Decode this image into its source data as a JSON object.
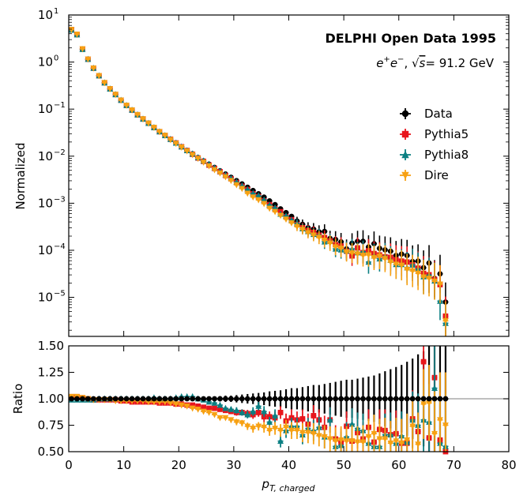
{
  "chart_data": [
    {
      "type": "scatter",
      "panel": "main",
      "yscale": "log",
      "title": "DELPHI Open Data 1995",
      "subtitle": "e+e−, √s = 91.2 GeV",
      "subtitle_parts": {
        "beam": "e",
        "sqrt_s": "= 91.2 GeV"
      },
      "xlabel": "",
      "ylabel": "Normalized",
      "xlim": [
        0,
        80
      ],
      "ylim_log10": [
        -5.83,
        1.0
      ],
      "yticks_labels": [
        "10",
        "10",
        "10",
        "10",
        "10",
        "10",
        "10"
      ],
      "yticks_exponents": [
        "1",
        "0",
        "−1",
        "−2",
        "−3",
        "−4",
        "−5"
      ],
      "yticks_log10": [
        1,
        0,
        -1,
        -2,
        -3,
        -4,
        -5
      ],
      "legend": {
        "location": "right",
        "entries": [
          "Data",
          "Pythia5",
          "Pythia8",
          "Dire"
        ]
      },
      "x": [
        0.5,
        1.5,
        2.5,
        3.5,
        4.5,
        5.5,
        6.5,
        7.5,
        8.5,
        9.5,
        10.5,
        11.5,
        12.5,
        13.5,
        14.5,
        15.5,
        16.5,
        17.5,
        18.5,
        19.5,
        20.5,
        21.5,
        22.5,
        23.5,
        24.5,
        25.5,
        26.5,
        27.5,
        28.5,
        29.5,
        30.5,
        31.5,
        32.5,
        33.5,
        34.5,
        35.5,
        36.5,
        37.5,
        38.5,
        39.5,
        40.5,
        41.5,
        42.5,
        43.5,
        44.5,
        45.5,
        46.5,
        47.5,
        48.5,
        49.5,
        50.5,
        51.5,
        52.5,
        53.5,
        54.5,
        55.5,
        56.5,
        57.5,
        58.5,
        59.5,
        60.5,
        61.5,
        62.5,
        63.5,
        64.5,
        65.5,
        66.5,
        67.5,
        68.5
      ],
      "series": [
        {
          "name": "Data",
          "color": "#000000",
          "marker": "circle",
          "log10_values": [
            0.68,
            0.58,
            0.27,
            0.06,
            -0.13,
            -0.29,
            -0.44,
            -0.57,
            -0.69,
            -0.81,
            -0.92,
            -1.02,
            -1.12,
            -1.21,
            -1.3,
            -1.39,
            -1.48,
            -1.56,
            -1.64,
            -1.72,
            -1.8,
            -1.88,
            -1.95,
            -2.03,
            -2.1,
            -2.17,
            -2.24,
            -2.31,
            -2.38,
            -2.45,
            -2.52,
            -2.59,
            -2.66,
            -2.73,
            -2.8,
            -2.87,
            -2.95,
            -3.03,
            -3.12,
            -3.2,
            -3.28,
            -3.38,
            -3.45,
            -3.52,
            -3.55,
            -3.61,
            -3.6,
            -3.75,
            -3.77,
            -3.82,
            -3.97,
            -3.85,
            -3.81,
            -3.81,
            -3.93,
            -3.86,
            -3.96,
            -3.99,
            -4.02,
            -4.11,
            -4.08,
            -4.11,
            -4.24,
            -4.23,
            -4.37,
            -4.27,
            -4.6,
            -4.5,
            -5.1
          ]
        },
        {
          "name": "Pythia5",
          "color": "#e8161d",
          "marker": "square",
          "log10_values": [
            0.69,
            0.59,
            0.28,
            0.06,
            -0.13,
            -0.29,
            -0.44,
            -0.57,
            -0.69,
            -0.81,
            -0.92,
            -1.02,
            -1.12,
            -1.21,
            -1.3,
            -1.39,
            -1.48,
            -1.56,
            -1.64,
            -1.72,
            -1.8,
            -1.88,
            -1.96,
            -2.04,
            -2.11,
            -2.19,
            -2.26,
            -2.33,
            -2.41,
            -2.48,
            -2.56,
            -2.64,
            -2.71,
            -2.8,
            -2.86,
            -2.95,
            -3.03,
            -3.12,
            -3.18,
            -3.29,
            -3.35,
            -3.45,
            -3.52,
            -3.58,
            -3.62,
            -3.68,
            -3.73,
            -3.8,
            -3.88,
            -3.91,
            -4.02,
            -4.12,
            -3.95,
            -4.05,
            -4.01,
            -4.07,
            -4.1,
            -4.14,
            -4.15,
            -4.2,
            -4.23,
            -4.25,
            -4.31,
            -4.38,
            -4.49,
            -4.52,
            -4.62,
            -4.73,
            -5.4
          ]
        },
        {
          "name": "Pythia8",
          "color": "#0b7f82",
          "marker": "triangle-up",
          "log10_values": [
            0.68,
            0.58,
            0.27,
            0.06,
            -0.13,
            -0.29,
            -0.44,
            -0.57,
            -0.69,
            -0.81,
            -0.92,
            -1.02,
            -1.12,
            -1.21,
            -1.3,
            -1.39,
            -1.48,
            -1.56,
            -1.64,
            -1.72,
            -1.8,
            -1.88,
            -1.95,
            -2.03,
            -2.1,
            -2.17,
            -2.25,
            -2.32,
            -2.4,
            -2.47,
            -2.55,
            -2.63,
            -2.71,
            -2.79,
            -2.84,
            -2.93,
            -3.04,
            -3.1,
            -3.23,
            -3.27,
            -3.36,
            -3.43,
            -3.54,
            -3.6,
            -3.66,
            -3.68,
            -3.82,
            -3.81,
            -3.97,
            -3.99,
            -4.01,
            -3.97,
            -4.05,
            -4.03,
            -4.25,
            -4.12,
            -4.18,
            -4.13,
            -4.21,
            -4.3,
            -4.3,
            -4.37,
            -4.31,
            -4.4,
            -4.56,
            -4.53,
            -4.65,
            -5.08,
            -5.55
          ]
        },
        {
          "name": "Dire",
          "color": "#f7a113",
          "marker": "triangle-down",
          "log10_values": [
            0.69,
            0.59,
            0.28,
            0.06,
            -0.13,
            -0.29,
            -0.44,
            -0.57,
            -0.69,
            -0.81,
            -0.92,
            -1.02,
            -1.12,
            -1.21,
            -1.3,
            -1.39,
            -1.48,
            -1.56,
            -1.65,
            -1.73,
            -1.81,
            -1.89,
            -1.97,
            -2.05,
            -2.13,
            -2.21,
            -2.29,
            -2.36,
            -2.44,
            -2.52,
            -2.61,
            -2.69,
            -2.79,
            -2.87,
            -2.93,
            -3.01,
            -3.11,
            -3.18,
            -3.26,
            -3.34,
            -3.42,
            -3.5,
            -3.56,
            -3.63,
            -3.68,
            -3.73,
            -3.79,
            -3.85,
            -3.93,
            -3.96,
            -4.04,
            -4.06,
            -4.08,
            -4.11,
            -4.1,
            -4.16,
            -4.13,
            -4.18,
            -4.25,
            -4.3,
            -4.32,
            -4.41,
            -4.44,
            -4.49,
            -4.57,
            -4.6,
            -4.66,
            -4.72,
            -5.5
          ]
        }
      ]
    },
    {
      "type": "scatter",
      "panel": "ratio",
      "title": "",
      "xlabel": "pT,charged",
      "xlabel_parts": {
        "main": "p",
        "sub": "T, charged"
      },
      "ylabel": "Ratio",
      "xlim": [
        0,
        80
      ],
      "ylim": [
        0.5,
        1.5
      ],
      "xticks": [
        "0",
        "10",
        "20",
        "30",
        "40",
        "50",
        "60",
        "70",
        "80"
      ],
      "yticks": [
        "0.50",
        "0.75",
        "1.00",
        "1.25",
        "1.50"
      ],
      "reference_line": 1.0,
      "data_errors": [
        0.008,
        0.008,
        0.008,
        0.008,
        0.008,
        0.008,
        0.008,
        0.008,
        0.008,
        0.008,
        0.01,
        0.01,
        0.01,
        0.01,
        0.01,
        0.012,
        0.012,
        0.012,
        0.012,
        0.015,
        0.015,
        0.015,
        0.015,
        0.018,
        0.02,
        0.02,
        0.022,
        0.025,
        0.03,
        0.03,
        0.035,
        0.04,
        0.045,
        0.05,
        0.055,
        0.06,
        0.07,
        0.075,
        0.08,
        0.09,
        0.1,
        0.1,
        0.11,
        0.12,
        0.13,
        0.13,
        0.14,
        0.15,
        0.16,
        0.17,
        0.18,
        0.18,
        0.19,
        0.2,
        0.21,
        0.22,
        0.24,
        0.26,
        0.28,
        0.3,
        0.32,
        0.35,
        0.38,
        0.42,
        0.45,
        0.5,
        0.55,
        0.6,
        0.7
      ],
      "series": [
        {
          "name": "Pythia5",
          "color": "#e8161d",
          "marker": "square",
          "values": [
            1.02,
            1.02,
            1.01,
            1.0,
            0.99,
            0.99,
            0.99,
            0.99,
            0.99,
            0.98,
            0.98,
            0.97,
            0.97,
            0.97,
            0.97,
            0.97,
            0.96,
            0.96,
            0.96,
            0.95,
            0.95,
            0.94,
            0.94,
            0.93,
            0.92,
            0.91,
            0.91,
            0.9,
            0.89,
            0.88,
            0.87,
            0.87,
            0.86,
            0.85,
            0.87,
            0.83,
            0.83,
            0.82,
            0.87,
            0.79,
            0.82,
            0.8,
            0.81,
            0.76,
            0.84,
            0.8,
            0.73,
            0.8,
            0.62,
            0.59,
            0.74,
            0.6,
            0.68,
            0.62,
            0.73,
            0.59,
            0.71,
            0.7,
            0.66,
            0.67,
            0.58,
            0.58,
            0.81,
            0.69,
            1.35,
            0.63,
            1.2,
            0.61,
            0.5
          ],
          "errors": [
            0.01,
            0.01,
            0.01,
            0.01,
            0.01,
            0.01,
            0.01,
            0.01,
            0.01,
            0.01,
            0.01,
            0.01,
            0.01,
            0.01,
            0.01,
            0.01,
            0.01,
            0.01,
            0.01,
            0.01,
            0.01,
            0.01,
            0.01,
            0.01,
            0.015,
            0.015,
            0.02,
            0.02,
            0.02,
            0.025,
            0.03,
            0.03,
            0.035,
            0.04,
            0.04,
            0.05,
            0.05,
            0.06,
            0.06,
            0.07,
            0.08,
            0.08,
            0.09,
            0.1,
            0.1,
            0.1,
            0.11,
            0.12,
            0.13,
            0.13,
            0.14,
            0.15,
            0.15,
            0.16,
            0.17,
            0.18,
            0.19,
            0.2,
            0.21,
            0.22,
            0.23,
            0.25,
            0.27,
            0.3,
            0.33,
            0.36,
            0.4,
            0.45,
            0.5
          ]
        },
        {
          "name": "Pythia8",
          "color": "#0b7f82",
          "marker": "triangle-up",
          "values": [
            0.99,
            0.99,
            0.99,
            0.99,
            0.99,
            1.0,
            1.0,
            1.0,
            1.0,
            1.0,
            1.0,
            1.0,
            1.0,
            1.0,
            1.0,
            1.01,
            1.0,
            1.0,
            1.0,
            1.01,
            1.02,
            1.02,
            1.02,
            1.0,
            0.99,
            0.97,
            0.96,
            0.94,
            0.91,
            0.9,
            0.89,
            0.87,
            0.85,
            0.88,
            0.93,
            0.88,
            0.78,
            0.84,
            0.6,
            0.7,
            0.74,
            0.74,
            0.66,
            0.72,
            0.7,
            0.73,
            0.64,
            0.8,
            0.55,
            0.56,
            0.64,
            0.76,
            0.72,
            0.7,
            0.58,
            0.55,
            0.55,
            0.66,
            0.66,
            0.58,
            0.65,
            0.59,
            0.8,
            0.75,
            0.8,
            0.78,
            1.1,
            0.58,
            0.55
          ],
          "errors": [
            0.01,
            0.01,
            0.01,
            0.01,
            0.01,
            0.01,
            0.01,
            0.01,
            0.01,
            0.01,
            0.01,
            0.01,
            0.01,
            0.01,
            0.01,
            0.01,
            0.01,
            0.01,
            0.01,
            0.01,
            0.01,
            0.01,
            0.01,
            0.01,
            0.015,
            0.015,
            0.02,
            0.02,
            0.02,
            0.025,
            0.03,
            0.03,
            0.035,
            0.04,
            0.04,
            0.05,
            0.05,
            0.06,
            0.06,
            0.07,
            0.08,
            0.08,
            0.09,
            0.1,
            0.1,
            0.1,
            0.11,
            0.12,
            0.13,
            0.13,
            0.14,
            0.15,
            0.15,
            0.16,
            0.17,
            0.18,
            0.19,
            0.2,
            0.21,
            0.22,
            0.23,
            0.25,
            0.27,
            0.3,
            0.33,
            0.36,
            0.4,
            0.45,
            0.5
          ]
        },
        {
          "name": "Dire",
          "color": "#f7a113",
          "marker": "triangle-down",
          "values": [
            1.02,
            1.02,
            1.01,
            1.0,
            0.99,
            0.99,
            0.99,
            0.99,
            0.98,
            0.98,
            0.98,
            0.98,
            0.98,
            0.98,
            0.97,
            0.97,
            0.97,
            0.97,
            0.96,
            0.95,
            0.94,
            0.93,
            0.91,
            0.9,
            0.88,
            0.87,
            0.85,
            0.82,
            0.82,
            0.8,
            0.78,
            0.77,
            0.74,
            0.72,
            0.74,
            0.73,
            0.7,
            0.72,
            0.7,
            0.73,
            0.7,
            0.7,
            0.68,
            0.68,
            0.67,
            0.65,
            0.64,
            0.62,
            0.6,
            0.61,
            0.6,
            0.6,
            0.59,
            0.59,
            0.64,
            0.67,
            0.62,
            0.62,
            0.58,
            0.6,
            0.58,
            0.61,
            0.74,
            0.57,
            0.95,
            0.96,
            0.67,
            0.8,
            0.75
          ],
          "errors": [
            0.01,
            0.01,
            0.01,
            0.01,
            0.01,
            0.01,
            0.01,
            0.01,
            0.01,
            0.01,
            0.01,
            0.01,
            0.01,
            0.01,
            0.01,
            0.01,
            0.01,
            0.01,
            0.01,
            0.01,
            0.01,
            0.01,
            0.01,
            0.01,
            0.015,
            0.015,
            0.02,
            0.02,
            0.02,
            0.025,
            0.03,
            0.03,
            0.035,
            0.04,
            0.04,
            0.05,
            0.05,
            0.06,
            0.06,
            0.07,
            0.08,
            0.08,
            0.09,
            0.1,
            0.1,
            0.1,
            0.11,
            0.12,
            0.13,
            0.13,
            0.14,
            0.15,
            0.15,
            0.16,
            0.17,
            0.18,
            0.19,
            0.2,
            0.21,
            0.22,
            0.23,
            0.25,
            0.27,
            0.3,
            0.33,
            0.36,
            0.4,
            0.45,
            0.5
          ]
        }
      ]
    }
  ]
}
